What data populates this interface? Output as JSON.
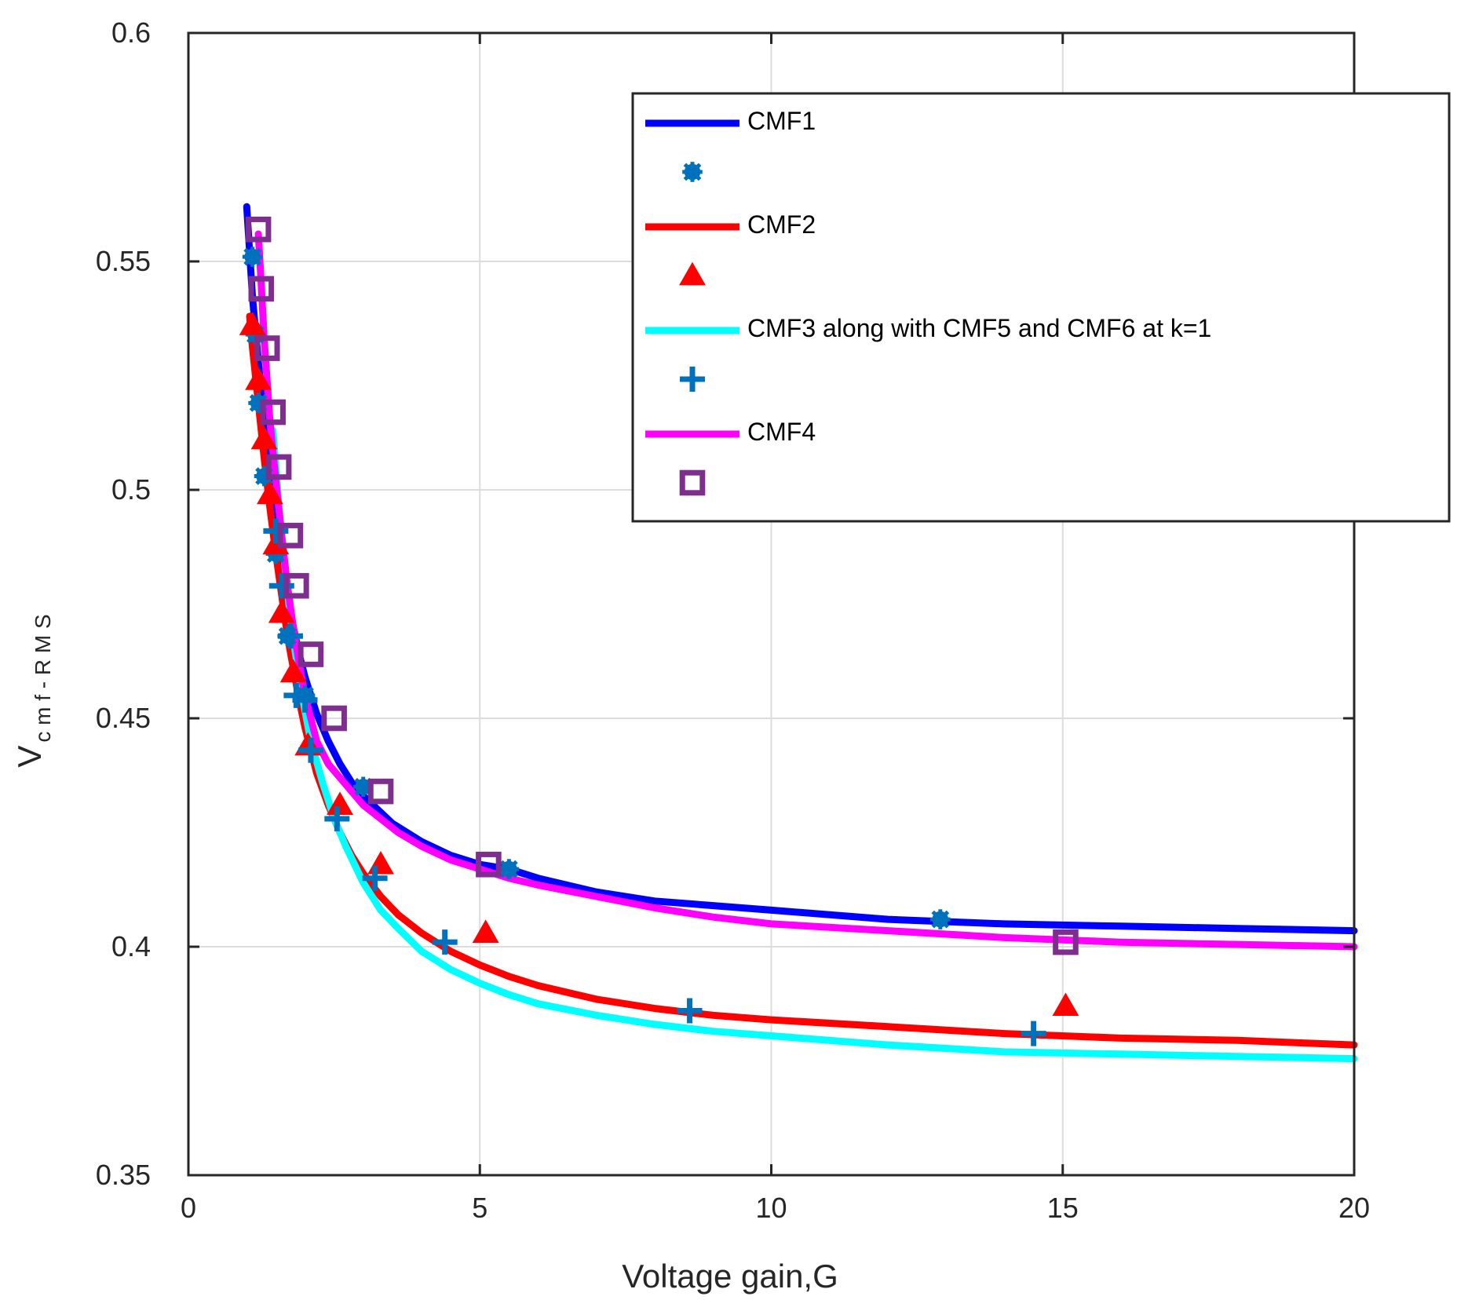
{
  "chart_data": {
    "type": "line",
    "title": "",
    "xlabel": "Voltage gain,G",
    "ylabel_main": "V",
    "ylabel_sub": "c m f - R M S",
    "xlim": [
      0,
      20
    ],
    "ylim": [
      0.35,
      0.6
    ],
    "xticks": [
      0,
      5,
      10,
      15,
      20
    ],
    "xtick_labels": [
      "0",
      "5",
      "10",
      "15",
      "20"
    ],
    "yticks": [
      0.35,
      0.4,
      0.45,
      0.5,
      0.55,
      0.6
    ],
    "ytick_labels": [
      "0.35",
      "0.4",
      "0.45",
      "0.5",
      "0.55",
      "0.6"
    ],
    "grid": true,
    "legend_position": "top-right",
    "series": [
      {
        "name": "CMF1",
        "kind": "line",
        "color": "#0000ff",
        "x": [
          1.0,
          1.05,
          1.1,
          1.2,
          1.3,
          1.4,
          1.5,
          1.6,
          1.7,
          1.8,
          1.9,
          2.0,
          2.2,
          2.4,
          2.6,
          2.8,
          3.0,
          3.25,
          3.5,
          4.0,
          4.5,
          5.0,
          5.5,
          6.0,
          7.0,
          8.0,
          9.0,
          10.0,
          12.0,
          14.0,
          16.0,
          18.0,
          20.0
        ],
        "values": [
          0.562,
          0.552,
          0.542,
          0.528,
          0.515,
          0.504,
          0.494,
          0.485,
          0.477,
          0.47,
          0.464,
          0.459,
          0.451,
          0.445,
          0.44,
          0.436,
          0.433,
          0.43,
          0.427,
          0.423,
          0.42,
          0.418,
          0.417,
          0.415,
          0.412,
          0.41,
          0.409,
          0.408,
          0.406,
          0.405,
          0.4045,
          0.404,
          0.4035
        ]
      },
      {
        "name": "CMF1 data",
        "kind": "marker",
        "marker": "circle",
        "color": "#0072bd",
        "x": [
          1.1,
          1.15,
          1.2,
          1.3,
          1.5,
          1.7,
          2.0,
          3.0,
          5.5,
          12.9
        ],
        "values": [
          0.551,
          0.534,
          0.519,
          0.503,
          0.486,
          0.468,
          0.455,
          0.435,
          0.417,
          0.406
        ]
      },
      {
        "name": "CMF2",
        "kind": "line",
        "color": "#ff0000",
        "x": [
          1.05,
          1.1,
          1.2,
          1.3,
          1.4,
          1.5,
          1.6,
          1.7,
          1.8,
          1.9,
          2.0,
          2.2,
          2.4,
          2.6,
          2.8,
          3.0,
          3.3,
          3.6,
          4.0,
          4.5,
          5.0,
          5.5,
          6.0,
          7.0,
          8.0,
          9.0,
          10.0,
          12.0,
          14.0,
          16.0,
          18.0,
          20.0
        ],
        "values": [
          0.538,
          0.531,
          0.519,
          0.507,
          0.496,
          0.486,
          0.477,
          0.468,
          0.461,
          0.454,
          0.448,
          0.438,
          0.431,
          0.425,
          0.42,
          0.416,
          0.411,
          0.407,
          0.403,
          0.399,
          0.396,
          0.3935,
          0.3915,
          0.3885,
          0.3865,
          0.385,
          0.384,
          0.3825,
          0.381,
          0.38,
          0.3795,
          0.3785
        ]
      },
      {
        "name": "CMF2 data",
        "kind": "marker",
        "marker": "triangle",
        "color": "#ff0000",
        "x": [
          1.1,
          1.2,
          1.3,
          1.4,
          1.5,
          1.6,
          1.8,
          2.05,
          2.6,
          3.3,
          5.1,
          15.05
        ],
        "values": [
          0.536,
          0.524,
          0.511,
          0.499,
          0.488,
          0.473,
          0.46,
          0.444,
          0.431,
          0.418,
          0.403,
          0.387
        ]
      },
      {
        "name": "CMF3 along with CMF5 and CMF6 at k=1",
        "kind": "line",
        "color": "#00ffff",
        "x": [
          1.45,
          1.55,
          1.65,
          1.75,
          1.85,
          1.95,
          2.1,
          2.3,
          2.5,
          2.7,
          3.0,
          3.3,
          3.6,
          4.0,
          4.5,
          5.0,
          5.5,
          6.0,
          7.0,
          8.0,
          9.0,
          10.0,
          12.0,
          14.0,
          16.0,
          18.0,
          20.0
        ],
        "values": [
          0.513,
          0.497,
          0.484,
          0.472,
          0.463,
          0.455,
          0.445,
          0.436,
          0.428,
          0.422,
          0.414,
          0.408,
          0.404,
          0.399,
          0.395,
          0.392,
          0.3895,
          0.3875,
          0.385,
          0.383,
          0.3815,
          0.3805,
          0.3785,
          0.377,
          0.3765,
          0.376,
          0.3755
        ]
      },
      {
        "name": "CMF3 data",
        "kind": "marker",
        "marker": "plus",
        "color": "#0072bd",
        "x": [
          1.5,
          1.6,
          1.75,
          1.85,
          2.0,
          2.1,
          2.55,
          3.2,
          4.4,
          8.6,
          14.5
        ],
        "values": [
          0.491,
          0.479,
          0.468,
          0.455,
          0.454,
          0.443,
          0.428,
          0.415,
          0.401,
          0.386,
          0.381
        ]
      },
      {
        "name": "CMF4",
        "kind": "line",
        "color": "#ff00ff",
        "x": [
          1.2,
          1.25,
          1.3,
          1.4,
          1.5,
          1.6,
          1.7,
          1.8,
          1.9,
          2.0,
          2.2,
          2.4,
          2.6,
          2.8,
          3.0,
          3.3,
          3.6,
          4.0,
          4.5,
          5.0,
          5.5,
          6.0,
          7.0,
          8.0,
          9.0,
          10.0,
          12.0,
          14.0,
          16.0,
          18.0,
          20.0
        ],
        "values": [
          0.556,
          0.545,
          0.533,
          0.515,
          0.502,
          0.49,
          0.479,
          0.47,
          0.462,
          0.455,
          0.445,
          0.44,
          0.437,
          0.434,
          0.431,
          0.428,
          0.425,
          0.422,
          0.419,
          0.417,
          0.415,
          0.4135,
          0.411,
          0.4085,
          0.4065,
          0.405,
          0.4035,
          0.402,
          0.401,
          0.4005,
          0.4
        ]
      },
      {
        "name": "CMF4 data",
        "kind": "marker",
        "marker": "square",
        "color": "#7e2f8e",
        "x": [
          1.2,
          1.25,
          1.35,
          1.45,
          1.55,
          1.75,
          1.85,
          2.1,
          2.5,
          3.3,
          5.15,
          15.05
        ],
        "values": [
          0.557,
          0.544,
          0.531,
          0.517,
          0.505,
          0.49,
          0.479,
          0.464,
          0.45,
          0.434,
          0.418,
          0.401
        ]
      }
    ],
    "legend": [
      {
        "label": "CMF1",
        "symbol": "line",
        "color": "#0000ff"
      },
      {
        "label": "",
        "symbol": "circle",
        "color": "#0072bd"
      },
      {
        "label": "CMF2",
        "symbol": "line",
        "color": "#ff0000"
      },
      {
        "label": "",
        "symbol": "triangle",
        "color": "#ff0000"
      },
      {
        "label": "CMF3 along with CMF5 and CMF6 at k=1",
        "symbol": "line",
        "color": "#00ffff"
      },
      {
        "label": "",
        "symbol": "plus",
        "color": "#0072bd"
      },
      {
        "label": "CMF4",
        "symbol": "line",
        "color": "#ff00ff"
      },
      {
        "label": "",
        "symbol": "square",
        "color": "#7e2f8e"
      }
    ]
  }
}
